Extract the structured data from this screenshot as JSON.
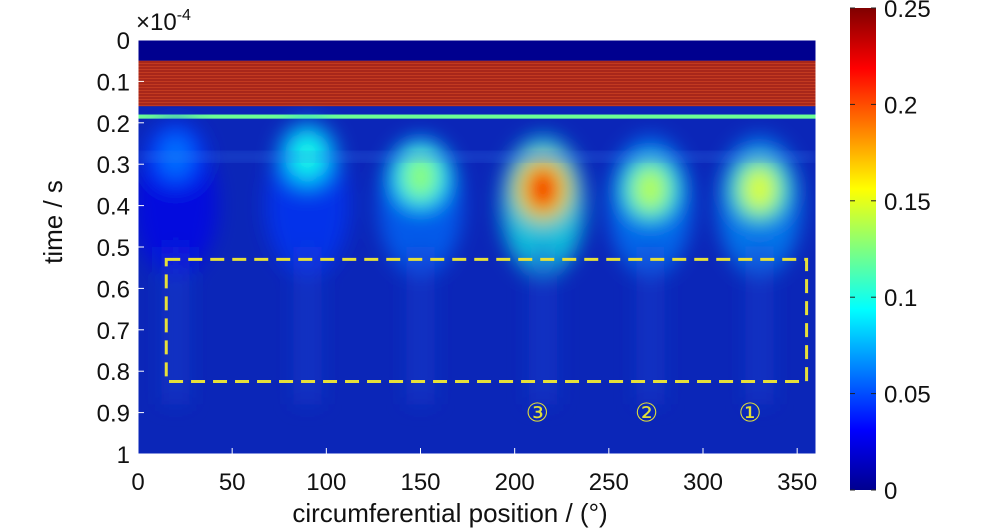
{
  "chart_data": {
    "type": "heatmap",
    "title": "",
    "xlabel": "circumferential position / (°)",
    "ylabel": "time / s",
    "y_exponent_label": "×10",
    "y_exponent_power": "-4",
    "xlim": [
      0,
      360
    ],
    "ylim": [
      0,
      1
    ],
    "x_ticks": [
      "0",
      "50",
      "100",
      "150",
      "200",
      "250",
      "300",
      "350"
    ],
    "y_ticks": [
      "0",
      "0.1",
      "0.2",
      "0.3",
      "0.4",
      "0.5",
      "0.6",
      "0.7",
      "0.8",
      "0.9",
      "1"
    ],
    "x_tick_values": [
      0,
      50,
      100,
      150,
      200,
      250,
      300,
      350
    ],
    "y_tick_values": [
      0,
      0.1,
      0.2,
      0.3,
      0.4,
      0.5,
      0.6,
      0.7,
      0.8,
      0.9,
      1
    ],
    "colorbar": {
      "range": [
        0,
        0.25
      ],
      "ticks": [
        "0",
        "0.05",
        "0.1",
        "0.15",
        "0.2",
        "0.25"
      ],
      "tick_values": [
        0,
        0.05,
        0.1,
        0.15,
        0.2,
        0.25
      ],
      "colormap": "jet"
    },
    "bands": [
      {
        "y_range": [
          0,
          0.05
        ],
        "value": 0.0
      },
      {
        "y_range": [
          0.05,
          0.16
        ],
        "value": 0.25
      },
      {
        "y_range": [
          0.18,
          0.19
        ],
        "value": 0.12
      }
    ],
    "blobs": [
      {
        "x": 20,
        "y": 0.28,
        "value": 0.06
      },
      {
        "x": 90,
        "y": 0.28,
        "value": 0.1
      },
      {
        "x": 150,
        "y": 0.33,
        "value": 0.13
      },
      {
        "x": 215,
        "y": 0.36,
        "value": 0.22
      },
      {
        "x": 272,
        "y": 0.36,
        "value": 0.14
      },
      {
        "x": 330,
        "y": 0.36,
        "value": 0.15
      }
    ],
    "annotations": [
      {
        "text": "③",
        "x": 212,
        "y": 0.9
      },
      {
        "text": "②",
        "x": 270,
        "y": 0.9
      },
      {
        "text": "①",
        "x": 325,
        "y": 0.9
      }
    ],
    "highlight_box": {
      "x_range": [
        15,
        355
      ],
      "y_range": [
        0.53,
        0.825
      ],
      "color": "#e6e03a",
      "style": "dashed"
    }
  }
}
